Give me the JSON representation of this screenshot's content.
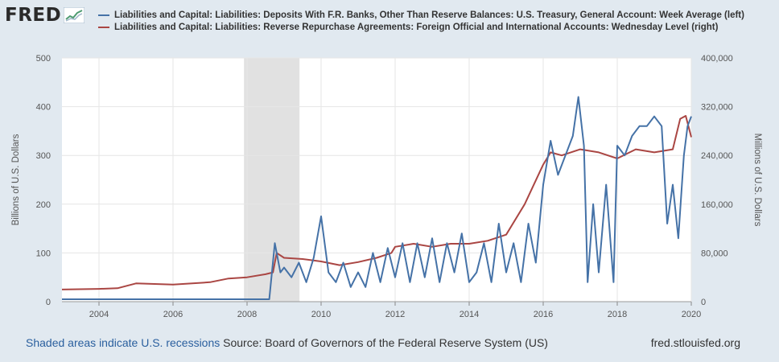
{
  "header": {
    "logo_text": "FRED",
    "logo_icon": "line-chart-icon"
  },
  "chart_data": {
    "type": "line",
    "x_range": [
      2003.0,
      2020.0
    ],
    "x_ticks": [
      "2004",
      "2006",
      "2008",
      "2010",
      "2012",
      "2014",
      "2016",
      "2018",
      "2020"
    ],
    "left_axis": {
      "label": "Billions of U.S. Dollars",
      "range": [
        0,
        500
      ],
      "ticks": [
        "0",
        "100",
        "200",
        "300",
        "400",
        "500"
      ]
    },
    "right_axis": {
      "label": "Millions of U.S. Dollars",
      "range": [
        0,
        400000
      ],
      "ticks": [
        "0",
        "80,000",
        "160,000",
        "240,000",
        "320,000",
        "400,000"
      ]
    },
    "grid": true,
    "recession_shading": [
      [
        2007.917,
        2009.417
      ]
    ],
    "series": [
      {
        "name": "Liabilities and Capital: Liabilities: Deposits With F.R. Banks, Other Than Reserve Balances: U.S. Treasury, General Account: Week Average (left)",
        "axis": "left",
        "color": "#4572a7",
        "x": [
          2003.0,
          2004.0,
          2005.0,
          2006.0,
          2007.0,
          2008.0,
          2008.6,
          2008.75,
          2008.9,
          2009.0,
          2009.2,
          2009.4,
          2009.6,
          2009.8,
          2010.0,
          2010.2,
          2010.4,
          2010.6,
          2010.8,
          2011.0,
          2011.2,
          2011.4,
          2011.6,
          2011.8,
          2012.0,
          2012.2,
          2012.4,
          2012.6,
          2012.8,
          2013.0,
          2013.2,
          2013.4,
          2013.6,
          2013.8,
          2014.0,
          2014.2,
          2014.4,
          2014.6,
          2014.8,
          2015.0,
          2015.2,
          2015.4,
          2015.6,
          2015.8,
          2016.0,
          2016.2,
          2016.4,
          2016.6,
          2016.8,
          2016.95,
          2017.1,
          2017.2,
          2017.35,
          2017.5,
          2017.7,
          2017.9,
          2018.0,
          2018.2,
          2018.4,
          2018.6,
          2018.8,
          2019.0,
          2019.2,
          2019.35,
          2019.5,
          2019.65,
          2019.8,
          2019.9,
          2020.0
        ],
        "values": [
          5,
          5,
          5,
          5,
          5,
          5,
          5,
          120,
          60,
          70,
          50,
          80,
          40,
          90,
          175,
          60,
          40,
          80,
          30,
          60,
          30,
          100,
          40,
          110,
          50,
          120,
          40,
          120,
          50,
          130,
          40,
          120,
          60,
          140,
          40,
          60,
          120,
          40,
          160,
          60,
          120,
          40,
          160,
          80,
          240,
          330,
          260,
          300,
          340,
          420,
          320,
          40,
          200,
          60,
          240,
          40,
          320,
          300,
          340,
          360,
          360,
          380,
          360,
          160,
          240,
          130,
          300,
          360,
          380
        ]
      },
      {
        "name": "Liabilities and Capital: Liabilities: Reverse Repurchase Agreements: Foreign Official and International Accounts: Wednesday Level (right)",
        "axis": "right",
        "color": "#aa4643",
        "x": [
          2003.0,
          2004.0,
          2004.5,
          2005.0,
          2006.0,
          2007.0,
          2007.5,
          2008.0,
          2008.5,
          2008.7,
          2008.8,
          2009.0,
          2009.5,
          2010.0,
          2010.5,
          2011.0,
          2011.5,
          2011.9,
          2012.0,
          2012.5,
          2013.0,
          2013.5,
          2014.0,
          2014.5,
          2015.0,
          2015.5,
          2016.0,
          2016.2,
          2016.5,
          2017.0,
          2017.5,
          2018.0,
          2018.5,
          2019.0,
          2019.5,
          2019.7,
          2019.85,
          2020.0
        ],
        "values": [
          20000,
          21000,
          22000,
          30000,
          28000,
          32000,
          38000,
          40000,
          45000,
          48000,
          80000,
          72000,
          70000,
          66000,
          60000,
          65000,
          72000,
          80000,
          90000,
          95000,
          90000,
          95000,
          95000,
          100000,
          110000,
          160000,
          225000,
          245000,
          240000,
          250000,
          245000,
          235000,
          250000,
          245000,
          250000,
          300000,
          305000,
          270000
        ]
      }
    ]
  },
  "footer": {
    "recession_note": "Shaded areas indicate U.S. recessions",
    "source": "Source: Board of Governors of the Federal Reserve System (US)",
    "site": "fred.stlouisfed.org"
  }
}
